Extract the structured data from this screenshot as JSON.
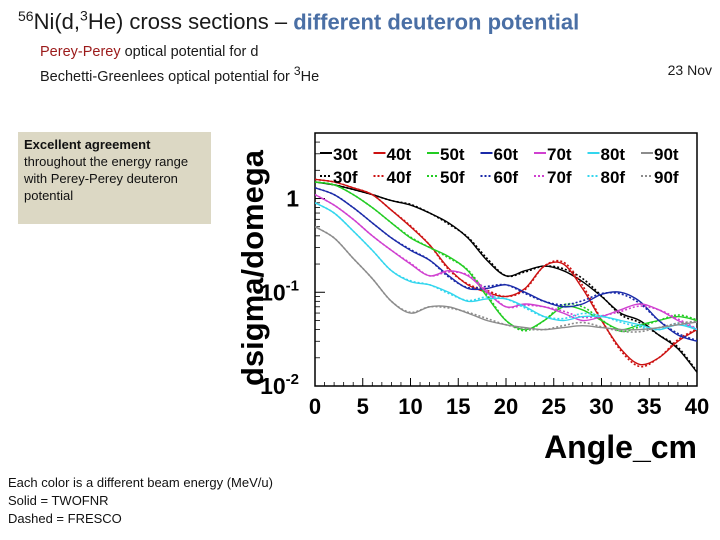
{
  "header": {
    "title_pre": "56Ni(d,3He) cross sections – ",
    "title_highlight": "different deuteron potential",
    "line1_highlight": "Perey-Perey",
    "line1_rest": " optical potential for d",
    "line2_highlight": "Bechetti-Greenlees",
    "line2_rest": " optical potential for 3He",
    "date": "23 Nov"
  },
  "note": {
    "strong": "Excellent agreement",
    "rest": "throughout the energy range with Perey-Perey deuteron potential"
  },
  "footer": {
    "line1": "Each color is a different beam energy (MeV/u)",
    "line2": "Solid = TWOFNR",
    "line3": "Dashed = FRESCO"
  },
  "chart_data": {
    "type": "line",
    "xlabel": "Angle_cm",
    "ylabel": "dsigma/domega",
    "xlim": [
      0,
      40
    ],
    "ylim": [
      0.01,
      5
    ],
    "yscale": "log",
    "x_ticks": [
      "0",
      "5",
      "10",
      "15",
      "20",
      "25",
      "30",
      "35",
      "40"
    ],
    "y_ticks": [
      {
        "value": 1,
        "label": "1"
      },
      {
        "value": 0.1,
        "label": "10-1"
      },
      {
        "value": 0.01,
        "label": "10-2"
      }
    ],
    "legend_position": "top",
    "legend_rows": [
      [
        "30t",
        "40t",
        "50t",
        "60t",
        "70t",
        "80t",
        "90t"
      ],
      [
        "30f",
        "40f",
        "50f",
        "60f",
        "70f",
        "80f",
        "90f"
      ]
    ],
    "x": [
      0,
      2,
      4,
      6,
      8,
      10,
      12,
      14,
      16,
      18,
      20,
      22,
      24,
      26,
      28,
      30,
      32,
      34,
      36,
      38,
      40
    ],
    "series": [
      {
        "name": "30t",
        "color": "#000000",
        "style": "solid",
        "values": [
          1.5,
          1.4,
          1.25,
          1.1,
          0.95,
          0.85,
          0.7,
          0.55,
          0.38,
          0.22,
          0.15,
          0.17,
          0.19,
          0.17,
          0.13,
          0.09,
          0.06,
          0.05,
          0.035,
          0.025,
          0.014
        ]
      },
      {
        "name": "40t",
        "color": "#cc1111",
        "style": "solid",
        "values": [
          1.6,
          1.5,
          1.3,
          1.1,
          0.75,
          0.5,
          0.32,
          0.18,
          0.12,
          0.1,
          0.09,
          0.11,
          0.19,
          0.2,
          0.11,
          0.05,
          0.025,
          0.017,
          0.02,
          0.03,
          0.04
        ]
      },
      {
        "name": "50t",
        "color": "#22cc22",
        "style": "solid",
        "values": [
          1.5,
          1.4,
          1.1,
          0.8,
          0.55,
          0.38,
          0.3,
          0.24,
          0.17,
          0.09,
          0.05,
          0.04,
          0.05,
          0.07,
          0.065,
          0.05,
          0.04,
          0.045,
          0.05,
          0.055,
          0.05
        ]
      },
      {
        "name": "60t",
        "color": "#1a2aa8",
        "style": "solid",
        "values": [
          1.3,
          1.1,
          0.8,
          0.55,
          0.38,
          0.28,
          0.22,
          0.15,
          0.11,
          0.11,
          0.12,
          0.1,
          0.08,
          0.07,
          0.075,
          0.095,
          0.1,
          0.08,
          0.05,
          0.035,
          0.03
        ]
      },
      {
        "name": "70t",
        "color": "#d040d0",
        "style": "solid",
        "values": [
          1.1,
          0.85,
          0.6,
          0.4,
          0.28,
          0.2,
          0.15,
          0.17,
          0.15,
          0.1,
          0.07,
          0.075,
          0.07,
          0.06,
          0.05,
          0.055,
          0.065,
          0.075,
          0.065,
          0.05,
          0.04
        ]
      },
      {
        "name": "80t",
        "color": "#33d6ee",
        "style": "solid",
        "values": [
          0.9,
          0.7,
          0.45,
          0.28,
          0.17,
          0.13,
          0.12,
          0.1,
          0.08,
          0.085,
          0.085,
          0.07,
          0.055,
          0.05,
          0.055,
          0.055,
          0.05,
          0.045,
          0.04,
          0.045,
          0.04
        ]
      },
      {
        "name": "90t",
        "color": "#8c8c8c",
        "style": "solid",
        "values": [
          0.5,
          0.38,
          0.23,
          0.14,
          0.08,
          0.06,
          0.07,
          0.07,
          0.06,
          0.05,
          0.045,
          0.042,
          0.04,
          0.042,
          0.044,
          0.042,
          0.04,
          0.04,
          0.042,
          0.045,
          0.048
        ]
      }
    ],
    "fresco_factor": [
      1.0,
      1.0,
      1.0,
      1.0,
      1.0,
      1.02,
      1.0,
      0.97,
      1.02,
      1.05,
      1.0,
      0.97,
      1.0,
      1.05,
      1.08,
      1.02,
      0.96,
      0.95,
      1.0,
      1.04,
      1.02
    ]
  }
}
